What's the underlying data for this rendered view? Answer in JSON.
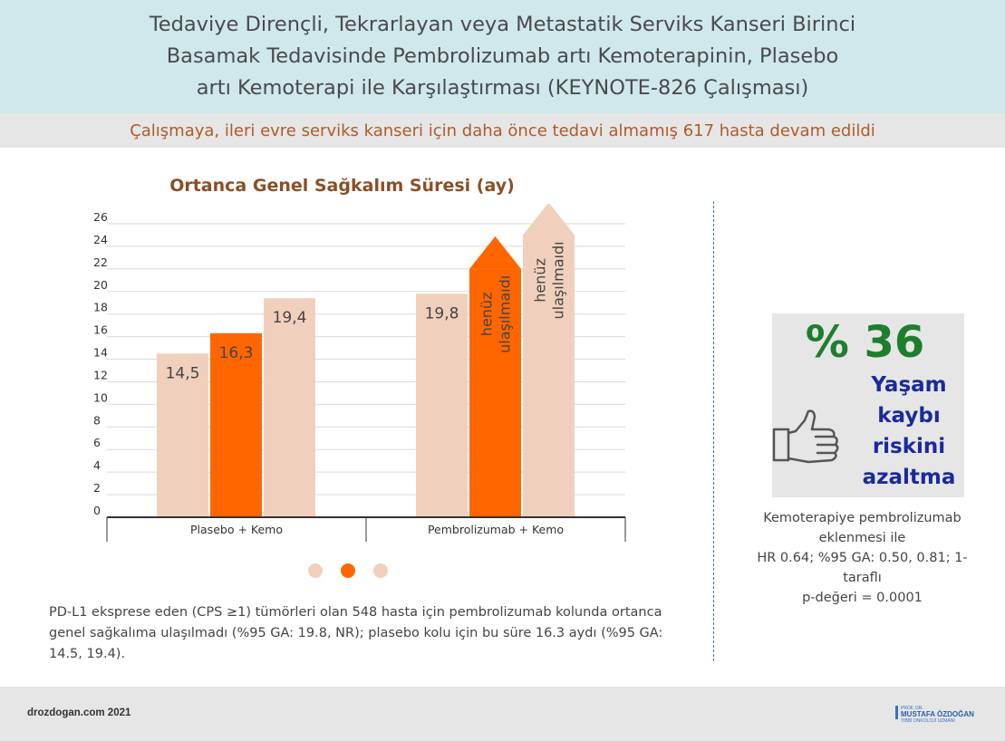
{
  "header": {
    "title": "Tedaviye Dirençli, Tekrarlayan veya Metastatik Serviks Kanseri Birinci Basamak Tedavisinde Pembrolizumab artı Kemoterapinin, Plasebo artı Kemoterapi ile Karşılaştırması (KEYNOTE-826 Çalışması)"
  },
  "subtitle": "Çalışmaya, ileri evre serviks kanseri için daha önce tedavi almamış 617 hasta devam edildi",
  "chart_data": {
    "type": "bar",
    "title": "Ortanca Genel Sağkalım Süresi (ay)",
    "categories": [
      "Plasebo + Kemo",
      "Pembrolizumab + Kemo"
    ],
    "series": [
      {
        "values": [
          14.5,
          19.8
        ],
        "labels": [
          "14,5",
          "19,8"
        ],
        "color": "#f0d0bc"
      },
      {
        "values": [
          16.3,
          22.0
        ],
        "labels": [
          "16,3",
          "henüz ulaşılmaıdı"
        ],
        "reached": [
          true,
          false
        ],
        "color": "#ff6600"
      },
      {
        "values": [
          19.4,
          25.0
        ],
        "labels": [
          "19,4",
          "henüz ulaşılmaıdı"
        ],
        "reached": [
          true,
          false
        ],
        "color": "#f0d0bc"
      }
    ],
    "yticks": [
      "0",
      "2",
      "4",
      "6",
      "8",
      "10",
      "12",
      "14",
      "16",
      "18",
      "20",
      "22",
      "24",
      "26"
    ],
    "ylim": [
      0,
      26
    ],
    "grid": true,
    "colors": {
      "light": "#f0d0bc",
      "accent": "#ff6600",
      "grid": "#d9d9d9",
      "axis": "#333333"
    }
  },
  "note": "PD-L1 eksprese eden (CPS ≥1) tümörleri olan 548 hasta için pembrolizumab kolunda ortanca genel sağkalıma ulaşılmadı (%95 GA: 19.8, NR); plasebo kolu için bu süre 16.3 aydı (%95 GA: 14.5, 19.4).",
  "stat": {
    "percent": "% 36",
    "risk_lines": [
      "Yaşam",
      "kaybı",
      "riskini",
      "azaltma"
    ],
    "icon": "thumbs-up-icon",
    "hr_lines": [
      "Kemoterapiye pembrolizumab",
      "eklenmesi ile",
      "HR 0.64; %95 GA: 0.50, 0.81; 1-taraflı",
      "p-değeri = 0.0001"
    ]
  },
  "footer": {
    "site": "drozdogan.com 2021",
    "logo_lines": [
      "PROF. DR.",
      "MUSTAFA ÖZDOĞAN",
      "TIBBİ ONKOLOJİ UZMANI"
    ]
  }
}
